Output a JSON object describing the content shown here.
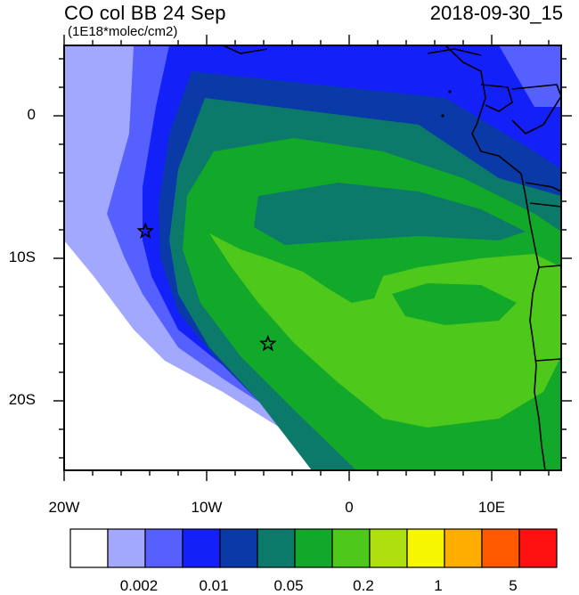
{
  "header": {
    "title": "CO col BB 24 Sep",
    "datetime": "2018-09-30_15",
    "units": "(1E18*molec/cm2)"
  },
  "axes": {
    "y_labels": [
      "0",
      "10S",
      "20S"
    ],
    "x_labels": [
      "20W",
      "10W",
      "0",
      "10E"
    ]
  },
  "colorbar": {
    "colors": [
      "#ffffff",
      "#a3a8ff",
      "#5560ff",
      "#1420f8",
      "#0a3aa8",
      "#0c7a6a",
      "#12a82a",
      "#4ec81a",
      "#aee010",
      "#f6f600",
      "#ffae00",
      "#ff5a00",
      "#ff1010"
    ],
    "labels": [
      "0.002",
      "0.01",
      "0.05",
      "0.2",
      "1",
      "5"
    ]
  },
  "markers": [
    {
      "name": "star-marker-1",
      "lon": -14.3,
      "lat": -8.1
    },
    {
      "name": "star-marker-2",
      "lon": -5.7,
      "lat": -16.0
    }
  ]
}
